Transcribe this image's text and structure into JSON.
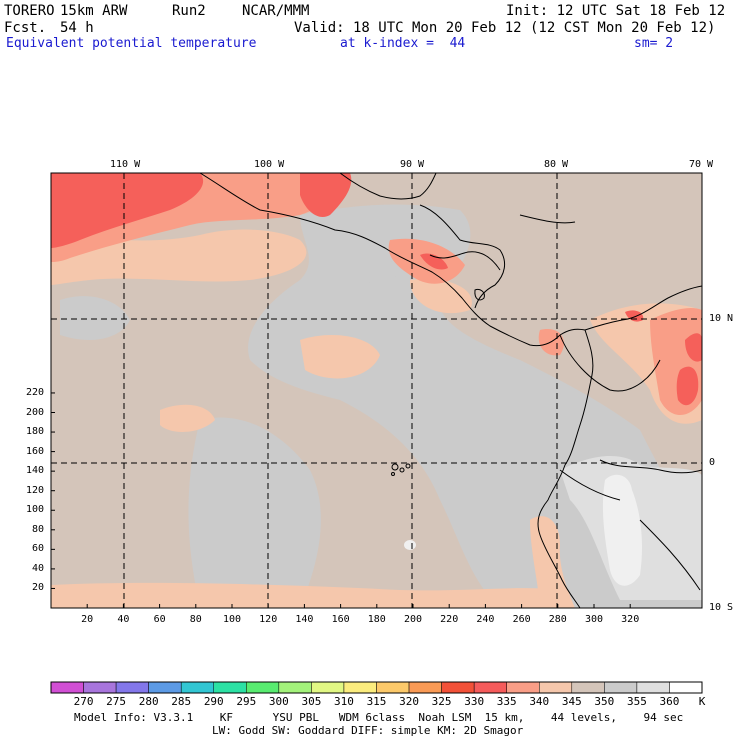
{
  "header": {
    "model": "TORERO",
    "resolution": "15km ARW",
    "run": "Run2",
    "org": "NCAR/MMM",
    "init": "Init: 12 UTC Sat 18 Feb 12",
    "fcst_label": "Fcst.",
    "fcst_value": "54 h",
    "valid": "Valid: 18 UTC Mon 20 Feb 12 (12 CST Mon 20 Feb 12)",
    "field": "Equivalent potential temperature",
    "level": "at k-index =  44",
    "smooth": "sm= 2"
  },
  "map": {
    "lon_labels": [
      "110 W",
      "100 W",
      "90 W",
      "80 W",
      "70 W"
    ],
    "lat_labels": [
      "10 N",
      "0",
      "10 S"
    ],
    "y_ticks": [
      "20",
      "40",
      "60",
      "80",
      "100",
      "120",
      "140",
      "160",
      "180",
      "200",
      "220"
    ],
    "x_ticks": [
      "20",
      "40",
      "60",
      "80",
      "100",
      "120",
      "140",
      "160",
      "180",
      "200",
      "220",
      "240",
      "260",
      "280",
      "300",
      "320"
    ],
    "background_color": "#d4c5ba",
    "gray_color": "#cbcbcb",
    "warm_colors": [
      "#f5c7ac",
      "#f99e87",
      "#f5605a"
    ]
  },
  "colorbar": {
    "unit": "K",
    "labels": [
      "270",
      "275",
      "280",
      "285",
      "290",
      "295",
      "300",
      "305",
      "310",
      "315",
      "320",
      "325",
      "330",
      "335",
      "340",
      "345",
      "350",
      "355",
      "360"
    ],
    "colors": [
      "#d14fd4",
      "#a875dc",
      "#8377ea",
      "#5c9ae5",
      "#32c6d3",
      "#2ce1a4",
      "#58eb70",
      "#a3f27b",
      "#e1f784",
      "#fbec7e",
      "#fcc96a",
      "#f99a55",
      "#f25138",
      "#f55b5b",
      "#f99e87",
      "#f5c7ac",
      "#d4c5ba",
      "#cbcbcb",
      "#dfdfdf",
      "#ffffff"
    ]
  },
  "footer": {
    "line1": "Model Info: V3.3.1    KF      YSU PBL   WDM 6class  Noah LSM  15 km,    44 levels,    94 sec",
    "line2": "LW: Godd SW: Goddard DIFF: simple KM: 2D Smagor"
  }
}
